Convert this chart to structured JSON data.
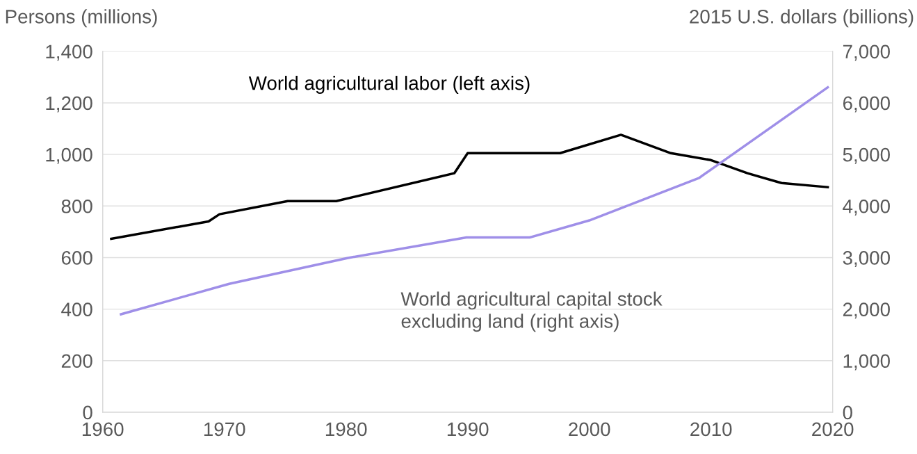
{
  "chart_data": {
    "type": "line",
    "ylabel": "Persons (millions)",
    "y2label": "2015 U.S. dollars (billions)",
    "series": [
      {
        "name": "World agricultural labor (left axis)",
        "color": "#000000",
        "x": [
          1960.7,
          1968.7,
          1969.6,
          1975.2,
          1979.2,
          1988.9,
          1990,
          1997.6,
          2002.6,
          2006.7,
          2010,
          2013,
          2015.8,
          2019.6
        ],
        "values": [
          673,
          740,
          768,
          819,
          819,
          927,
          1005,
          1005,
          1076,
          1005,
          978,
          927,
          889,
          873
        ]
      },
      {
        "name": "World agricultural capital stock\nexcluding land (right axis)",
        "color": "#9f8fe8",
        "axis": "y2",
        "x": [
          1961.5,
          1970.4,
          1980.1,
          1989.9,
          1995.1,
          2000,
          2009,
          2019.6
        ],
        "values": [
          1900,
          2490,
          2990,
          3390,
          3390,
          3720,
          4540,
          6300
        ]
      }
    ],
    "xlim": [
      1960,
      2020
    ],
    "xticks": [
      1960,
      1970,
      1980,
      1990,
      2000,
      2010,
      2020
    ],
    "ylim": [
      0,
      1400
    ],
    "yticks": [
      {
        "value": 0,
        "label": "0"
      },
      {
        "value": 200,
        "label": "200"
      },
      {
        "value": 400,
        "label": "400"
      },
      {
        "value": 600,
        "label": "600"
      },
      {
        "value": 800,
        "label": "800"
      },
      {
        "value": 1000,
        "label": "1,000"
      },
      {
        "value": 1200,
        "label": "1,200"
      },
      {
        "value": 1400,
        "label": "1,400"
      }
    ],
    "y2lim": [
      0,
      7000
    ],
    "y2ticks": [
      {
        "value": 0,
        "label": "0"
      },
      {
        "value": 1000,
        "label": "1,000"
      },
      {
        "value": 2000,
        "label": "2,000"
      },
      {
        "value": 3000,
        "label": "3,000"
      },
      {
        "value": 4000,
        "label": "4,000"
      },
      {
        "value": 5000,
        "label": "5,000"
      },
      {
        "value": 6000,
        "label": "6,000"
      },
      {
        "value": 7000,
        "label": "7,000"
      }
    ],
    "grid": "y",
    "marker": "none",
    "line_style": "solid"
  }
}
